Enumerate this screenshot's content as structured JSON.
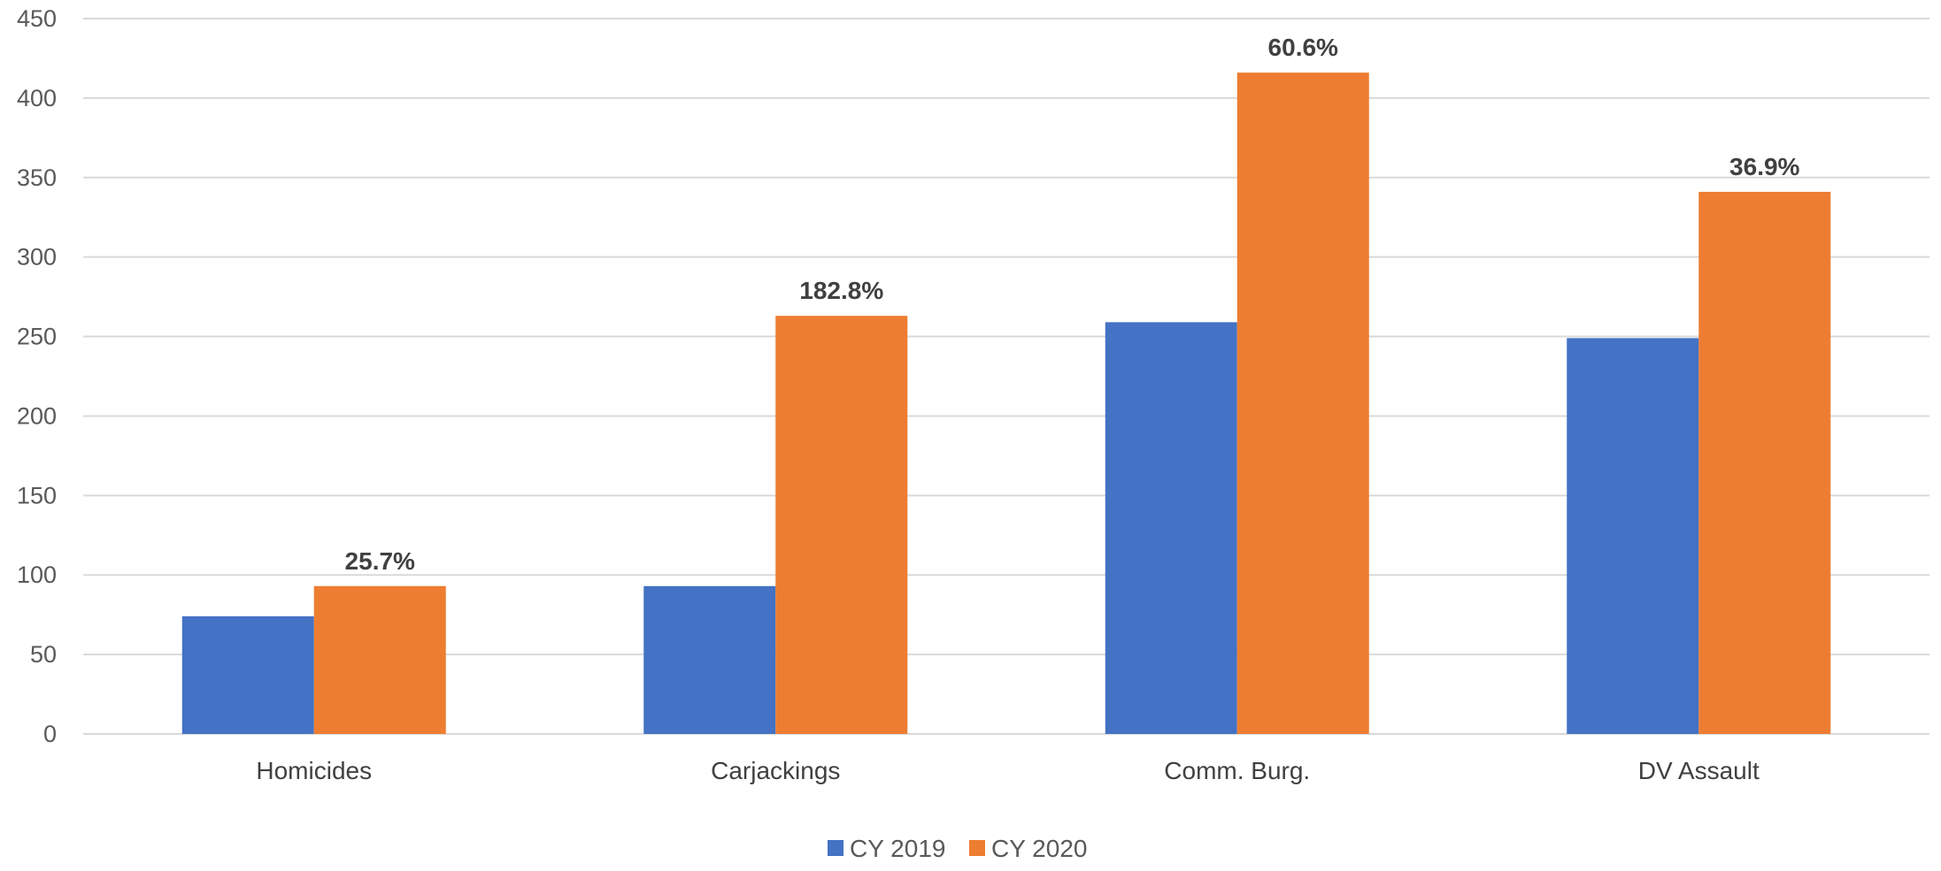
{
  "chart_data": {
    "type": "bar",
    "categories": [
      "Homicides",
      "Carjackings",
      "Comm. Burg.",
      "DV Assault"
    ],
    "series": [
      {
        "name": "CY 2019",
        "values": [
          74,
          93,
          259,
          249
        ],
        "color": "#4472c4"
      },
      {
        "name": "CY 2020",
        "values": [
          93,
          263,
          416,
          341
        ],
        "color": "#ed7d31"
      }
    ],
    "data_labels": [
      "25.7%",
      "182.8%",
      "60.6%",
      "36.9%"
    ],
    "data_labels_series": "CY 2020",
    "ylim": [
      0,
      450
    ],
    "yticks": [
      0,
      50,
      100,
      150,
      200,
      250,
      300,
      350,
      400,
      450
    ],
    "grid": true,
    "legend": "bottom-center"
  }
}
